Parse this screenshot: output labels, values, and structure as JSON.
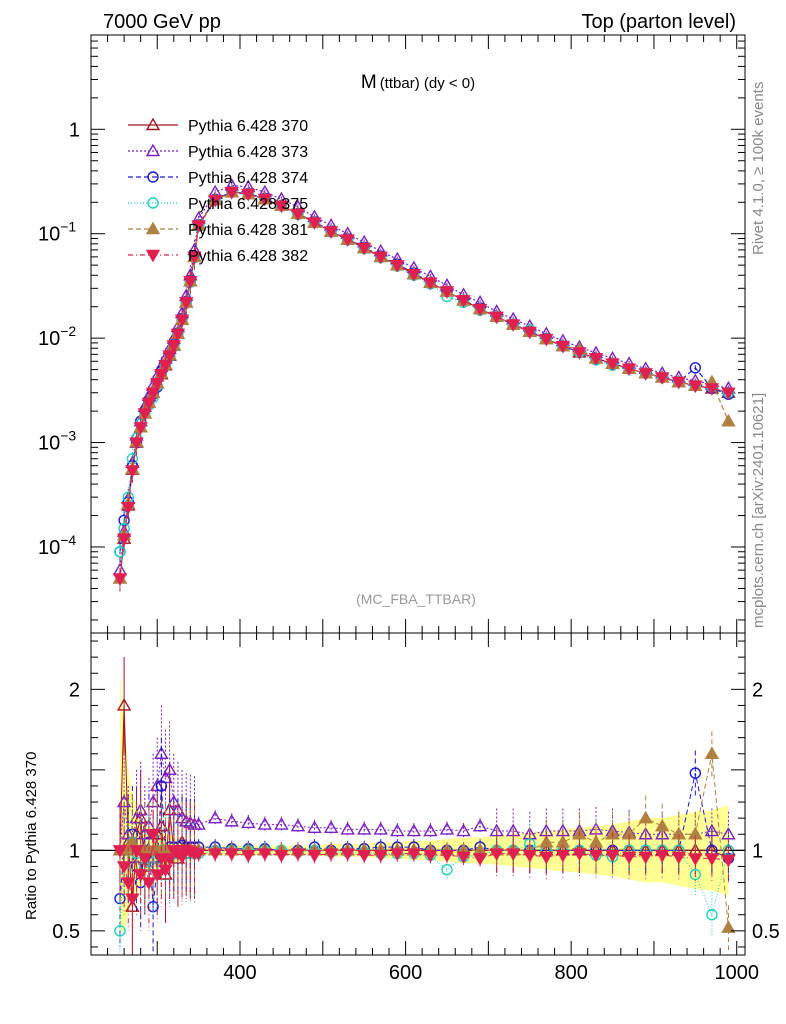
{
  "header": {
    "left": "7000 GeV pp",
    "right": "Top (parton level)"
  },
  "side": {
    "rivet": "Rivet 4.1.0, ≥ 100k events",
    "mcplots": "mcplots.cern.ch [arXiv:2401.10621]"
  },
  "chart_data": {
    "type": "line",
    "title_main": "M",
    "title_sub": "(ttbar) (dy < 0)",
    "analysis_tag": "(MC_FBA_TTBAR)",
    "x_range": [
      220,
      1010
    ],
    "main": {
      "y_scale": "log",
      "y_range": [
        1.5e-05,
        8
      ],
      "y_ticks": [
        {
          "value": 0.0001,
          "label": "10",
          "exp": "−4"
        },
        {
          "value": 0.001,
          "label": "10",
          "exp": "−3"
        },
        {
          "value": 0.01,
          "label": "10",
          "exp": "−2"
        },
        {
          "value": 0.1,
          "label": "10",
          "exp": "−1"
        },
        {
          "value": 1,
          "label": "1",
          "exp": ""
        }
      ]
    },
    "ratio": {
      "ylabel": "Ratio to Pythia 6.428 370",
      "y_range": [
        0.35,
        2.35
      ],
      "y_ticks": [
        {
          "value": 0.5,
          "label": "0.5"
        },
        {
          "value": 1,
          "label": "1"
        },
        {
          "value": 2,
          "label": "2"
        }
      ]
    },
    "x_ticks": [
      {
        "value": 400,
        "label": "400"
      },
      {
        "value": 600,
        "label": "600"
      },
      {
        "value": 800,
        "label": "800"
      },
      {
        "value": 1000,
        "label": "1000"
      }
    ],
    "x": [
      255,
      260,
      265,
      270,
      275,
      280,
      285,
      290,
      295,
      300,
      305,
      310,
      315,
      320,
      325,
      330,
      335,
      340,
      345,
      350,
      370,
      390,
      410,
      430,
      450,
      470,
      490,
      510,
      530,
      550,
      570,
      590,
      610,
      630,
      650,
      670,
      690,
      710,
      730,
      750,
      770,
      790,
      810,
      830,
      850,
      870,
      890,
      910,
      930,
      950,
      970,
      990
    ],
    "series": [
      {
        "name": "Pythia 6.428 370",
        "color": "#a01520",
        "marker": "triangle-up-open",
        "dash": "",
        "values": [
          5e-05,
          0.00012,
          0.00025,
          0.00055,
          0.001,
          0.0014,
          0.0019,
          0.0024,
          0.003,
          0.0037,
          0.0045,
          0.0055,
          0.0068,
          0.0085,
          0.011,
          0.015,
          0.022,
          0.035,
          0.06,
          0.12,
          0.21,
          0.25,
          0.24,
          0.215,
          0.185,
          0.155,
          0.128,
          0.105,
          0.088,
          0.073,
          0.06,
          0.05,
          0.041,
          0.034,
          0.028,
          0.023,
          0.019,
          0.016,
          0.0135,
          0.0115,
          0.0098,
          0.0084,
          0.0073,
          0.0064,
          0.0057,
          0.0051,
          0.0046,
          0.0042,
          0.0038,
          0.0035,
          0.0033,
          0.003
        ],
        "ratio": [
          1,
          1.9,
          1.05,
          0.65,
          1.1,
          1.2,
          0.9,
          1.0,
          0.95,
          1.1,
          1.15,
          0.85,
          1.25,
          1.0,
          0.95,
          1.05,
          1.02,
          1.0,
          1.0,
          1.0,
          1,
          1,
          1,
          1,
          1,
          1,
          1,
          1,
          1,
          1,
          1,
          1,
          1,
          1,
          1,
          1,
          1,
          1,
          1,
          1,
          1,
          1,
          1,
          1,
          1,
          1,
          1,
          1,
          1,
          1,
          1,
          1
        ]
      },
      {
        "name": "Pythia 6.428 373",
        "color": "#7a1fc0",
        "marker": "triangle-up-open",
        "dash": "2,2",
        "values": [
          6e-05,
          0.00014,
          0.00029,
          0.00064,
          0.00117,
          0.0016,
          0.0022,
          0.0028,
          0.0035,
          0.0043,
          0.0053,
          0.0064,
          0.0079,
          0.0099,
          0.0128,
          0.0174,
          0.0255,
          0.04,
          0.07,
          0.14,
          0.25,
          0.29,
          0.28,
          0.25,
          0.215,
          0.18,
          0.145,
          0.12,
          0.1,
          0.083,
          0.068,
          0.057,
          0.047,
          0.039,
          0.032,
          0.026,
          0.022,
          0.018,
          0.0152,
          0.013,
          0.011,
          0.0094,
          0.0082,
          0.0072,
          0.0064,
          0.0057,
          0.0051,
          0.0046,
          0.0042,
          0.0039,
          0.0036,
          0.0033
        ],
        "ratio": [
          1.0,
          1.3,
          1.1,
          1.05,
          1.2,
          1.25,
          1.1,
          1.15,
          1.3,
          1.4,
          1.6,
          1.45,
          1.5,
          1.3,
          1.25,
          1.2,
          1.18,
          1.17,
          1.16,
          1.16,
          1.2,
          1.18,
          1.17,
          1.16,
          1.16,
          1.15,
          1.14,
          1.14,
          1.13,
          1.13,
          1.13,
          1.12,
          1.12,
          1.12,
          1.13,
          1.12,
          1.15,
          1.12,
          1.12,
          1.1,
          1.12,
          1.12,
          1.12,
          1.13,
          1.12,
          1.11,
          1.1,
          1.1,
          1.1,
          1.1,
          1.12,
          1.1
        ]
      },
      {
        "name": "Pythia 6.428 374",
        "color": "#1a1ad0",
        "marker": "circle-open",
        "dash": "5,3",
        "values": [
          9e-05,
          0.00018,
          0.00027,
          0.0006,
          0.001,
          0.0016,
          0.002,
          0.0025,
          0.0029,
          0.0034,
          0.0048,
          0.0056,
          0.0068,
          0.0087,
          0.0112,
          0.0154,
          0.0224,
          0.0357,
          0.061,
          0.122,
          0.214,
          0.252,
          0.243,
          0.218,
          0.186,
          0.156,
          0.13,
          0.106,
          0.089,
          0.074,
          0.061,
          0.051,
          0.042,
          0.034,
          0.028,
          0.023,
          0.0194,
          0.016,
          0.0136,
          0.0116,
          0.0099,
          0.0084,
          0.0073,
          0.0064,
          0.0057,
          0.0051,
          0.0046,
          0.0042,
          0.0038,
          0.0052,
          0.0033,
          0.0029
        ],
        "ratio": [
          0.7,
          1.0,
          0.95,
          1.1,
          0.9,
          0.8,
          1.0,
          1.05,
          0.65,
          0.9,
          1.4,
          1.0,
          1.02,
          1.02,
          1.02,
          1.03,
          1.02,
          1.02,
          1.02,
          1.02,
          1.02,
          1.01,
          1.01,
          1.01,
          1.0,
          1.0,
          1.02,
          1.0,
          1.01,
          1.01,
          1.02,
          1.02,
          1.02,
          1.0,
          1.0,
          1.0,
          1.02,
          1.0,
          1.0,
          1.0,
          1.0,
          1.0,
          1.0,
          1.0,
          1.0,
          1.0,
          1.0,
          1.0,
          1.0,
          1.48,
          1.0,
          0.95
        ]
      },
      {
        "name": "Pythia 6.428 375",
        "color": "#20d0c0",
        "marker": "circle-open",
        "dash": "1,2",
        "values": [
          9e-05,
          0.00015,
          0.0003,
          0.0007,
          0.0011,
          0.0015,
          0.0019,
          0.0023,
          0.0027,
          0.0035,
          0.0045,
          0.0055,
          0.0066,
          0.0083,
          0.011,
          0.015,
          0.0216,
          0.0343,
          0.059,
          0.118,
          0.21,
          0.25,
          0.24,
          0.215,
          0.185,
          0.153,
          0.128,
          0.104,
          0.087,
          0.072,
          0.059,
          0.049,
          0.04,
          0.033,
          0.025,
          0.022,
          0.0185,
          0.0162,
          0.0135,
          0.012,
          0.0098,
          0.0084,
          0.0073,
          0.0062,
          0.0055,
          0.0051,
          0.0046,
          0.0042,
          0.0038,
          0.0035,
          0.0034,
          0.003
        ],
        "ratio": [
          0.5,
          1.0,
          1.0,
          1.05,
          0.98,
          0.95,
          0.9,
          0.95,
          0.9,
          0.95,
          1.0,
          1.0,
          0.97,
          0.98,
          1.0,
          1.0,
          0.98,
          0.98,
          0.98,
          0.98,
          1.0,
          1.0,
          1.0,
          1.0,
          1.0,
          0.99,
          1.0,
          0.99,
          0.99,
          0.99,
          0.98,
          0.98,
          0.98,
          0.97,
          0.88,
          0.96,
          0.97,
          1.0,
          1.0,
          1.04,
          1.0,
          1.0,
          1.0,
          0.97,
          0.96,
          1.0,
          1.0,
          1.0,
          1.0,
          0.85,
          0.6,
          1.0
        ]
      },
      {
        "name": "Pythia 6.428 381",
        "color": "#b08040",
        "marker": "triangle-up-filled",
        "dash": "5,3",
        "values": [
          5e-05,
          0.00013,
          0.00026,
          0.00056,
          0.00102,
          0.0014,
          0.0019,
          0.0024,
          0.003,
          0.0037,
          0.0046,
          0.0056,
          0.0069,
          0.0086,
          0.011,
          0.015,
          0.022,
          0.035,
          0.06,
          0.12,
          0.21,
          0.25,
          0.24,
          0.215,
          0.185,
          0.155,
          0.128,
          0.105,
          0.088,
          0.073,
          0.06,
          0.05,
          0.041,
          0.034,
          0.028,
          0.023,
          0.019,
          0.016,
          0.0135,
          0.0115,
          0.0098,
          0.0084,
          0.0078,
          0.0064,
          0.0057,
          0.0051,
          0.0046,
          0.0042,
          0.0038,
          0.0035,
          0.0038,
          0.0016
        ],
        "ratio": [
          1.0,
          1.0,
          1.02,
          1.05,
          1.0,
          1.0,
          1.0,
          1.0,
          1.0,
          1.0,
          1.0,
          1.0,
          1.0,
          1.0,
          1.0,
          1.0,
          1.0,
          1.0,
          1.0,
          1.0,
          1,
          1,
          1,
          1,
          1,
          1,
          1,
          1,
          1,
          1,
          1,
          1,
          1,
          1,
          1,
          1,
          1,
          1,
          1,
          1,
          1.05,
          1.05,
          1.1,
          1.05,
          1.1,
          1.1,
          1.2,
          1.15,
          1.1,
          1.1,
          1.6,
          0.52
        ]
      },
      {
        "name": "Pythia 6.428 382",
        "color": "#e02050",
        "marker": "triangle-down-filled",
        "dash": "5,3,1,3",
        "values": [
          5e-05,
          0.00012,
          0.00024,
          0.00054,
          0.001,
          0.0014,
          0.0019,
          0.0024,
          0.003,
          0.0037,
          0.0045,
          0.0055,
          0.0068,
          0.0085,
          0.011,
          0.015,
          0.022,
          0.035,
          0.06,
          0.12,
          0.21,
          0.25,
          0.24,
          0.215,
          0.185,
          0.155,
          0.128,
          0.105,
          0.088,
          0.073,
          0.06,
          0.05,
          0.041,
          0.034,
          0.028,
          0.023,
          0.019,
          0.016,
          0.0135,
          0.0115,
          0.0098,
          0.0084,
          0.0073,
          0.0064,
          0.0057,
          0.0051,
          0.0046,
          0.0042,
          0.0038,
          0.0035,
          0.0033,
          0.003
        ],
        "ratio": [
          1.0,
          0.9,
          0.8,
          0.7,
          1.0,
          0.85,
          0.95,
          0.8,
          1.1,
          0.85,
          0.95,
          0.88,
          0.95,
          1.0,
          0.98,
          0.96,
          1.0,
          0.99,
          0.98,
          0.98,
          0.98,
          0.98,
          0.97,
          0.98,
          0.97,
          0.98,
          0.97,
          0.98,
          0.98,
          0.97,
          0.97,
          0.98,
          0.98,
          0.97,
          0.97,
          0.96,
          0.95,
          0.98,
          0.98,
          0.97,
          0.96,
          0.97,
          0.98,
          0.97,
          0.97,
          0.96,
          0.96,
          0.97,
          0.96,
          0.95,
          0.95,
          0.94
        ]
      }
    ],
    "band": {
      "color": "#ffff80",
      "lo": [
        0.5,
        0.5,
        0.6,
        0.7,
        0.72,
        0.8,
        0.84,
        0.86,
        0.87,
        0.88,
        0.89,
        0.9,
        0.91,
        0.92,
        0.93,
        0.94,
        0.95,
        0.96,
        0.97,
        0.97,
        0.97,
        0.97,
        0.97,
        0.97,
        0.97,
        0.97,
        0.97,
        0.96,
        0.96,
        0.96,
        0.95,
        0.95,
        0.94,
        0.94,
        0.93,
        0.92,
        0.92,
        0.91,
        0.9,
        0.89,
        0.88,
        0.87,
        0.86,
        0.85,
        0.84,
        0.82,
        0.8,
        0.8,
        0.78,
        0.76,
        0.75,
        0.72
      ],
      "hi": [
        2.1,
        1.8,
        1.5,
        1.35,
        1.28,
        1.2,
        1.16,
        1.14,
        1.13,
        1.12,
        1.11,
        1.1,
        1.09,
        1.08,
        1.07,
        1.06,
        1.05,
        1.04,
        1.03,
        1.03,
        1.03,
        1.03,
        1.03,
        1.03,
        1.03,
        1.03,
        1.03,
        1.04,
        1.04,
        1.04,
        1.05,
        1.05,
        1.06,
        1.06,
        1.07,
        1.08,
        1.08,
        1.09,
        1.1,
        1.11,
        1.12,
        1.13,
        1.14,
        1.15,
        1.16,
        1.18,
        1.2,
        1.2,
        1.22,
        1.24,
        1.25,
        1.28
      ]
    }
  }
}
